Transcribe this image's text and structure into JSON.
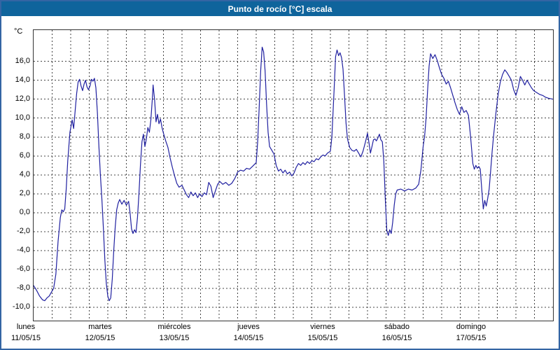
{
  "window": {
    "title": "Punto de rocío [°C] escala"
  },
  "axes": {
    "unit_label": "°C",
    "y_ticks": [
      {
        "label": "16,0",
        "value": 16
      },
      {
        "label": "14,0",
        "value": 14
      },
      {
        "label": "12,0",
        "value": 12
      },
      {
        "label": "10,0",
        "value": 10
      },
      {
        "label": "8,0",
        "value": 8
      },
      {
        "label": "6,0",
        "value": 6
      },
      {
        "label": "4,0",
        "value": 4
      },
      {
        "label": "2,0",
        "value": 2
      },
      {
        "label": "0,0",
        "value": 0
      },
      {
        "label": "-2,0",
        "value": -2
      },
      {
        "label": "-4,0",
        "value": -4
      },
      {
        "label": "-6,0",
        "value": -6
      },
      {
        "label": "-8,0",
        "value": -8
      },
      {
        "label": "-10,0",
        "value": -10
      }
    ],
    "x_days": [
      {
        "name": "lunes",
        "date": "11/05/15"
      },
      {
        "name": "martes",
        "date": "12/05/15"
      },
      {
        "name": "miércoles",
        "date": "13/05/15"
      },
      {
        "name": "jueves",
        "date": "14/05/15"
      },
      {
        "name": "viernes",
        "date": "15/05/15"
      },
      {
        "name": "sábado",
        "date": "16/05/15"
      },
      {
        "name": "domingo",
        "date": "17/05/15"
      }
    ]
  },
  "colors": {
    "titlebar": "#0f649c",
    "frame": "#3465a4",
    "line": "#2020a0",
    "grid": "#444444",
    "plot_border": "#333333"
  },
  "chart_data": {
    "type": "line",
    "title": "Punto de rocío [°C] escala",
    "ylabel": "°C",
    "xlabel": "",
    "x_unit": "days since 11/05/15 00:00",
    "xlim": [
      0,
      7
    ],
    "ylim_plot": [
      -11.4,
      19.3
    ],
    "y_tick_values": [
      16,
      14,
      12,
      10,
      8,
      6,
      4,
      2,
      0,
      -2,
      -4,
      -6,
      -8,
      -10
    ],
    "grid": "dashed, horizontal every 2 °C, vertical every 6 h",
    "legend_position": "none",
    "series": [
      {
        "name": "Punto de rocío",
        "color": "#2020a0",
        "points": [
          [
            0.0,
            -7.7
          ],
          [
            0.04,
            -8.2
          ],
          [
            0.08,
            -8.8
          ],
          [
            0.12,
            -9.2
          ],
          [
            0.15,
            -9.3
          ],
          [
            0.18,
            -9.0
          ],
          [
            0.21,
            -8.8
          ],
          [
            0.24,
            -8.4
          ],
          [
            0.27,
            -8.0
          ],
          [
            0.3,
            -6.5
          ],
          [
            0.33,
            -3.0
          ],
          [
            0.36,
            -0.5
          ],
          [
            0.38,
            0.3
          ],
          [
            0.4,
            0.1
          ],
          [
            0.42,
            0.4
          ],
          [
            0.44,
            2.5
          ],
          [
            0.46,
            5.5
          ],
          [
            0.49,
            8.5
          ],
          [
            0.52,
            9.8
          ],
          [
            0.54,
            8.9
          ],
          [
            0.56,
            10.8
          ],
          [
            0.58,
            12.6
          ],
          [
            0.6,
            13.8
          ],
          [
            0.62,
            14.1
          ],
          [
            0.64,
            13.4
          ],
          [
            0.66,
            12.9
          ],
          [
            0.68,
            13.6
          ],
          [
            0.7,
            14.0
          ],
          [
            0.72,
            13.3
          ],
          [
            0.74,
            13.0
          ],
          [
            0.76,
            13.4
          ],
          [
            0.78,
            14.1
          ],
          [
            0.8,
            13.9
          ],
          [
            0.82,
            14.2
          ],
          [
            0.84,
            13.2
          ],
          [
            0.86,
            10.5
          ],
          [
            0.88,
            7.0
          ],
          [
            0.9,
            4.0
          ],
          [
            0.92,
            1.5
          ],
          [
            0.94,
            -1.5
          ],
          [
            0.96,
            -5.0
          ],
          [
            0.98,
            -7.5
          ],
          [
            1.0,
            -8.8
          ],
          [
            1.02,
            -9.3
          ],
          [
            1.04,
            -9.0
          ],
          [
            1.06,
            -7.0
          ],
          [
            1.08,
            -4.0
          ],
          [
            1.1,
            -1.5
          ],
          [
            1.12,
            0.3
          ],
          [
            1.14,
            1.0
          ],
          [
            1.16,
            1.4
          ],
          [
            1.19,
            0.9
          ],
          [
            1.22,
            1.3
          ],
          [
            1.25,
            0.8
          ],
          [
            1.28,
            1.2
          ],
          [
            1.3,
            0.0
          ],
          [
            1.32,
            -1.7
          ],
          [
            1.34,
            -2.2
          ],
          [
            1.36,
            -1.8
          ],
          [
            1.38,
            -2.1
          ],
          [
            1.4,
            -0.5
          ],
          [
            1.42,
            2.0
          ],
          [
            1.44,
            5.0
          ],
          [
            1.46,
            7.5
          ],
          [
            1.48,
            8.3
          ],
          [
            1.5,
            7.0
          ],
          [
            1.52,
            7.8
          ],
          [
            1.54,
            9.0
          ],
          [
            1.56,
            8.5
          ],
          [
            1.58,
            9.8
          ],
          [
            1.6,
            12.0
          ],
          [
            1.61,
            13.5
          ],
          [
            1.63,
            12.0
          ],
          [
            1.65,
            9.6
          ],
          [
            1.67,
            10.4
          ],
          [
            1.69,
            9.4
          ],
          [
            1.71,
            9.9
          ],
          [
            1.73,
            9.0
          ],
          [
            1.75,
            8.4
          ],
          [
            1.78,
            7.6
          ],
          [
            1.81,
            6.9
          ],
          [
            1.84,
            5.8
          ],
          [
            1.87,
            4.8
          ],
          [
            1.9,
            3.9
          ],
          [
            1.93,
            3.1
          ],
          [
            1.96,
            2.7
          ],
          [
            2.0,
            2.9
          ],
          [
            2.03,
            2.4
          ],
          [
            2.06,
            1.9
          ],
          [
            2.09,
            1.6
          ],
          [
            2.12,
            2.2
          ],
          [
            2.15,
            1.8
          ],
          [
            2.18,
            2.1
          ],
          [
            2.21,
            1.6
          ],
          [
            2.24,
            2.0
          ],
          [
            2.27,
            1.7
          ],
          [
            2.3,
            2.1
          ],
          [
            2.33,
            1.9
          ],
          [
            2.36,
            3.2
          ],
          [
            2.39,
            2.8
          ],
          [
            2.42,
            1.6
          ],
          [
            2.45,
            2.3
          ],
          [
            2.48,
            3.0
          ],
          [
            2.51,
            3.3
          ],
          [
            2.55,
            3.0
          ],
          [
            2.59,
            3.2
          ],
          [
            2.63,
            2.9
          ],
          [
            2.67,
            3.1
          ],
          [
            2.71,
            3.6
          ],
          [
            2.75,
            4.3
          ],
          [
            2.79,
            4.5
          ],
          [
            2.83,
            4.4
          ],
          [
            2.87,
            4.7
          ],
          [
            2.91,
            4.6
          ],
          [
            2.95,
            4.9
          ],
          [
            3.0,
            5.3
          ],
          [
            3.02,
            7.5
          ],
          [
            3.04,
            11.0
          ],
          [
            3.06,
            15.0
          ],
          [
            3.08,
            17.5
          ],
          [
            3.1,
            17.0
          ],
          [
            3.12,
            15.0
          ],
          [
            3.14,
            11.5
          ],
          [
            3.16,
            8.5
          ],
          [
            3.18,
            7.0
          ],
          [
            3.21,
            6.6
          ],
          [
            3.24,
            6.2
          ],
          [
            3.27,
            5.0
          ],
          [
            3.3,
            4.4
          ],
          [
            3.33,
            4.6
          ],
          [
            3.36,
            4.2
          ],
          [
            3.39,
            4.5
          ],
          [
            3.42,
            4.1
          ],
          [
            3.45,
            4.3
          ],
          [
            3.48,
            3.9
          ],
          [
            3.51,
            4.2
          ],
          [
            3.54,
            4.8
          ],
          [
            3.57,
            5.2
          ],
          [
            3.6,
            5.0
          ],
          [
            3.63,
            5.3
          ],
          [
            3.66,
            5.1
          ],
          [
            3.69,
            5.4
          ],
          [
            3.72,
            5.2
          ],
          [
            3.75,
            5.5
          ],
          [
            3.78,
            5.4
          ],
          [
            3.81,
            5.7
          ],
          [
            3.84,
            5.6
          ],
          [
            3.87,
            5.9
          ],
          [
            3.9,
            6.1
          ],
          [
            3.93,
            6.0
          ],
          [
            3.96,
            6.3
          ],
          [
            4.0,
            6.5
          ],
          [
            4.02,
            8.0
          ],
          [
            4.05,
            13.0
          ],
          [
            4.07,
            16.5
          ],
          [
            4.09,
            17.2
          ],
          [
            4.11,
            16.6
          ],
          [
            4.13,
            16.9
          ],
          [
            4.15,
            16.4
          ],
          [
            4.17,
            15.2
          ],
          [
            4.19,
            12.5
          ],
          [
            4.21,
            9.5
          ],
          [
            4.23,
            7.8
          ],
          [
            4.26,
            6.9
          ],
          [
            4.29,
            6.6
          ],
          [
            4.32,
            6.5
          ],
          [
            4.35,
            6.7
          ],
          [
            4.38,
            6.3
          ],
          [
            4.41,
            5.9
          ],
          [
            4.44,
            6.5
          ],
          [
            4.47,
            7.4
          ],
          [
            4.5,
            8.4
          ],
          [
            4.52,
            7.4
          ],
          [
            4.54,
            6.3
          ],
          [
            4.56,
            7.0
          ],
          [
            4.58,
            7.7
          ],
          [
            4.6,
            7.8
          ],
          [
            4.62,
            7.6
          ],
          [
            4.64,
            7.9
          ],
          [
            4.66,
            8.3
          ],
          [
            4.68,
            7.7
          ],
          [
            4.7,
            7.5
          ],
          [
            4.72,
            5.5
          ],
          [
            4.74,
            1.5
          ],
          [
            4.76,
            -1.9
          ],
          [
            4.78,
            -2.4
          ],
          [
            4.8,
            -1.8
          ],
          [
            4.82,
            -2.2
          ],
          [
            4.84,
            -1.0
          ],
          [
            4.86,
            0.8
          ],
          [
            4.88,
            2.0
          ],
          [
            4.9,
            2.4
          ],
          [
            4.95,
            2.5
          ],
          [
            5.0,
            2.3
          ],
          [
            5.05,
            2.5
          ],
          [
            5.1,
            2.4
          ],
          [
            5.15,
            2.6
          ],
          [
            5.19,
            3.0
          ],
          [
            5.22,
            4.5
          ],
          [
            5.25,
            7.0
          ],
          [
            5.27,
            8.1
          ],
          [
            5.29,
            10.0
          ],
          [
            5.31,
            13.0
          ],
          [
            5.33,
            15.5
          ],
          [
            5.35,
            16.8
          ],
          [
            5.38,
            16.3
          ],
          [
            5.41,
            16.7
          ],
          [
            5.44,
            16.1
          ],
          [
            5.47,
            15.3
          ],
          [
            5.5,
            14.6
          ],
          [
            5.53,
            14.2
          ],
          [
            5.56,
            13.6
          ],
          [
            5.59,
            13.9
          ],
          [
            5.62,
            13.2
          ],
          [
            5.65,
            12.4
          ],
          [
            5.68,
            11.6
          ],
          [
            5.71,
            10.9
          ],
          [
            5.74,
            10.4
          ],
          [
            5.77,
            11.2
          ],
          [
            5.8,
            10.6
          ],
          [
            5.83,
            10.8
          ],
          [
            5.86,
            10.3
          ],
          [
            5.89,
            8.0
          ],
          [
            5.92,
            5.2
          ],
          [
            5.94,
            4.6
          ],
          [
            5.96,
            5.0
          ],
          [
            5.98,
            4.7
          ],
          [
            6.0,
            4.9
          ],
          [
            6.02,
            4.6
          ],
          [
            6.04,
            2.5
          ],
          [
            6.06,
            0.4
          ],
          [
            6.08,
            1.3
          ],
          [
            6.1,
            0.7
          ],
          [
            6.12,
            1.5
          ],
          [
            6.14,
            2.5
          ],
          [
            6.16,
            4.5
          ],
          [
            6.18,
            6.5
          ],
          [
            6.2,
            8.2
          ],
          [
            6.23,
            10.5
          ],
          [
            6.26,
            12.5
          ],
          [
            6.29,
            13.8
          ],
          [
            6.32,
            14.6
          ],
          [
            6.35,
            15.1
          ],
          [
            6.38,
            14.8
          ],
          [
            6.41,
            14.4
          ],
          [
            6.44,
            14.0
          ],
          [
            6.47,
            13.0
          ],
          [
            6.5,
            12.4
          ],
          [
            6.53,
            13.2
          ],
          [
            6.56,
            14.4
          ],
          [
            6.59,
            14.0
          ],
          [
            6.62,
            13.5
          ],
          [
            6.65,
            14.0
          ],
          [
            6.68,
            13.6
          ],
          [
            6.71,
            13.2
          ],
          [
            6.74,
            12.9
          ],
          [
            6.78,
            12.7
          ],
          [
            6.82,
            12.5
          ],
          [
            6.86,
            12.4
          ],
          [
            6.9,
            12.2
          ],
          [
            6.94,
            12.1
          ],
          [
            7.0,
            12.0
          ]
        ]
      }
    ]
  }
}
